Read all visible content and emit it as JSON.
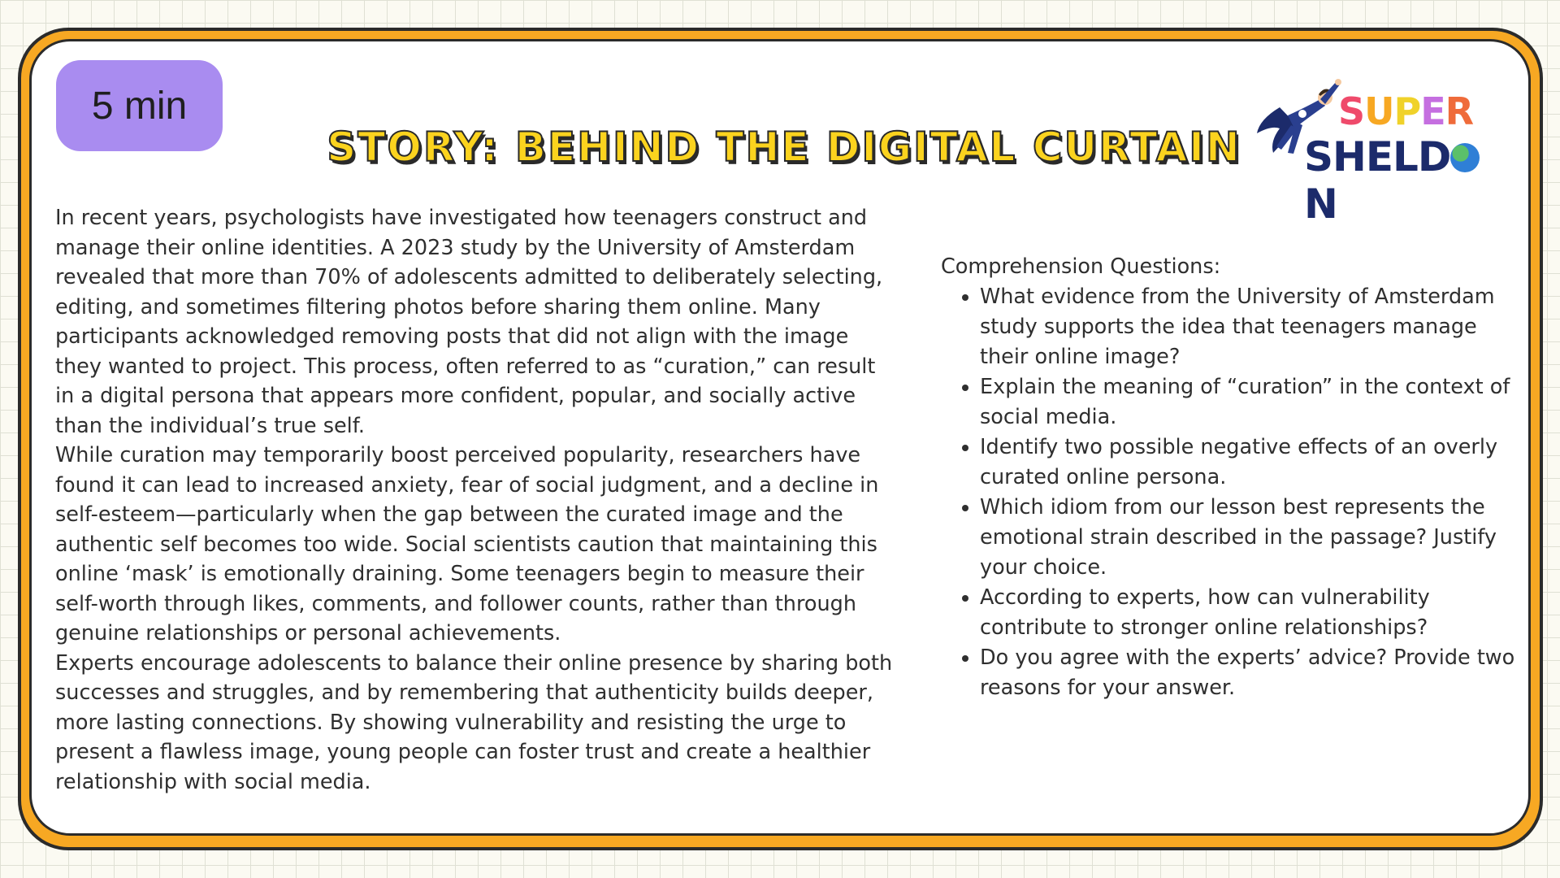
{
  "badge": {
    "time": "5 min"
  },
  "title": "STORY: BEHIND THE DIGITAL CURTAIN",
  "logo": {
    "line1": "SUPER",
    "line2": "SHELDON"
  },
  "story": {
    "paragraphs": [
      "In recent years, psychologists have investigated how teenagers construct and manage their online identities. A 2023 study by the University of Amsterdam revealed that more than 70% of adolescents admitted to deliberately selecting, editing, and sometimes filtering photos before sharing them online. Many participants acknowledged removing posts that did not align with the image they wanted to project. This process, often referred to as “curation,” can result in a digital persona that appears more confident, popular, and socially active than the individual’s true self.",
      "While curation may temporarily boost perceived popularity, researchers have found it can lead to increased anxiety, fear of social judgment, and a decline in self-esteem—particularly when the gap between the curated image and the authentic self becomes too wide. Social scientists caution that maintaining this online ‘mask’ is emotionally draining. Some teenagers begin to measure their self-worth through likes, comments, and follower counts, rather than through genuine relationships or personal achievements.",
      "Experts encourage adolescents to balance their online presence by sharing both successes and struggles, and by remembering that authenticity builds deeper, more lasting connections. By showing vulnerability and resisting the urge to present a flawless image, young people can foster trust and create a healthier relationship with social media."
    ]
  },
  "questions": {
    "heading": "Comprehension Questions:",
    "items": [
      "What evidence from the University of Amsterdam study supports the idea that teenagers manage their online image?",
      "Explain the meaning of “curation” in the context of social media.",
      "Identify two possible negative effects of an overly curated online persona.",
      "Which idiom from our lesson best represents the emotional strain described in the passage? Justify your choice.",
      "According to experts, how can vulnerability contribute to stronger online relationships?",
      "Do you agree with the experts’ advice? Provide two reasons for your answer."
    ]
  },
  "colors": {
    "frame": "#f7a823",
    "badge": "#a98cf0",
    "title_fill": "#fbd31e",
    "logo_navy": "#1c2b6b",
    "logo_letters": [
      "#ef4a6b",
      "#f7a823",
      "#f0d22a",
      "#c56fe0",
      "#ef6b3a"
    ]
  }
}
